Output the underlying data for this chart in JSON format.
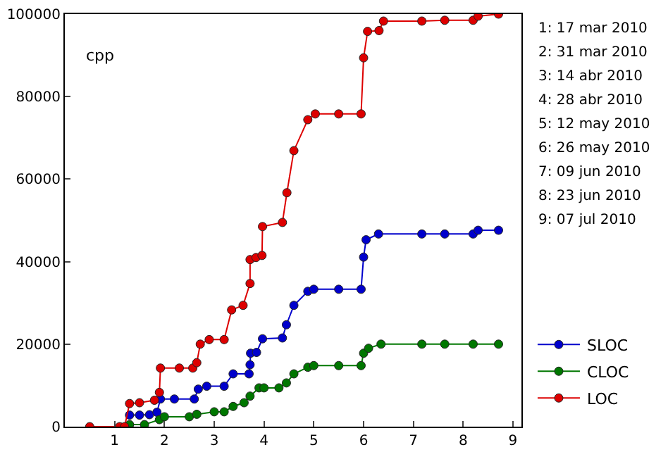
{
  "chart_data": {
    "type": "line",
    "marker": "circle",
    "line_style": "solid",
    "legend": "bottom right",
    "xlim": [
      0,
      9.17
    ],
    "xticks": [
      1,
      2,
      3,
      4,
      5,
      6,
      7,
      8,
      9
    ],
    "ylim": [
      0,
      100000
    ],
    "yticks": [
      0,
      20000,
      40000,
      60000,
      80000,
      100000
    ],
    "annotations": [
      "cpp",
      "1: 17 mar 2010",
      "2: 31 mar 2010",
      "3: 14 abr 2010",
      "4: 28 abr 2010",
      "5: 12 may 2010",
      "6: 26 may 2010",
      "7: 09 jun 2010",
      "8: 23 jun 2010",
      "9: 07 jul 2010"
    ],
    "series": [
      {
        "name": "SLOC",
        "color": "#0000cc",
        "x": [
          1.3,
          1.5,
          1.7,
          1.85,
          1.92,
          2.2,
          2.6,
          2.68,
          2.85,
          3.2,
          3.38,
          3.7,
          3.72,
          3.73,
          3.85,
          3.97,
          4.37,
          4.45,
          4.6,
          4.88,
          5.0,
          5.5,
          5.95,
          6.0,
          6.05,
          6.3,
          7.17,
          7.63,
          8.2,
          8.3,
          8.71
        ],
        "values": [
          2800,
          2800,
          2900,
          3500,
          6700,
          6700,
          6700,
          9100,
          9800,
          9800,
          12800,
          12800,
          15000,
          17800,
          18000,
          21300,
          21500,
          24700,
          29400,
          32800,
          33300,
          33300,
          33300,
          41100,
          45300,
          46700,
          46700,
          46700,
          46700,
          47600,
          47600
        ]
      },
      {
        "name": "CLOC",
        "color": "#007700",
        "x": [
          1.3,
          1.6,
          1.9,
          2.0,
          2.5,
          2.65,
          3.0,
          3.2,
          3.38,
          3.6,
          3.72,
          3.9,
          4.0,
          4.3,
          4.45,
          4.6,
          4.88,
          5.0,
          5.5,
          5.95,
          6.0,
          6.1,
          6.35,
          7.17,
          7.63,
          8.2,
          8.71
        ],
        "values": [
          500,
          500,
          1700,
          2400,
          2400,
          3000,
          3600,
          3600,
          4900,
          5800,
          7400,
          9400,
          9400,
          9400,
          10600,
          12800,
          14400,
          14800,
          14800,
          14800,
          17800,
          19000,
          20000,
          20000,
          20000,
          20000,
          20000
        ]
      },
      {
        "name": "LOC",
        "color": "#dd0000",
        "x": [
          0.5,
          1.1,
          1.2,
          1.3,
          1.5,
          1.8,
          1.9,
          1.92,
          2.3,
          2.57,
          2.65,
          2.72,
          2.9,
          3.2,
          3.35,
          3.58,
          3.72,
          3.72,
          3.84,
          3.96,
          3.97,
          4.37,
          4.46,
          4.6,
          4.88,
          5.03,
          5.5,
          5.95,
          6.0,
          6.08,
          6.31,
          6.4,
          7.17,
          7.63,
          8.2,
          8.3,
          8.71
        ],
        "values": [
          0,
          0,
          0,
          5600,
          5800,
          6400,
          8300,
          14200,
          14200,
          14200,
          15500,
          20000,
          21100,
          21100,
          28300,
          29400,
          34700,
          40500,
          41000,
          41500,
          48500,
          49500,
          56700,
          66900,
          74400,
          75800,
          75800,
          75800,
          89400,
          95800,
          96000,
          98300,
          98300,
          98500,
          98500,
          99500,
          100000
        ]
      }
    ]
  }
}
